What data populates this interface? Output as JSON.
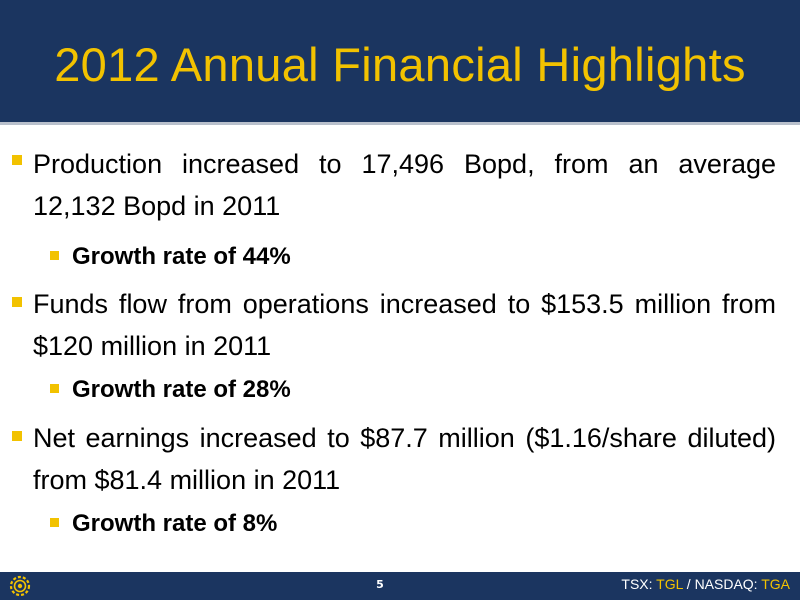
{
  "slide": {
    "title": "2012 Annual Financial Highlights",
    "bullets": [
      {
        "text": "Production increased to 17,496 Bopd, from an average 12,132 Bopd in 2011",
        "sub": "Growth rate of 44%"
      },
      {
        "text": "Funds flow from operations increased to $153.5 million from $120 million in 2011",
        "sub": "Growth rate of 28%"
      },
      {
        "text": "Net earnings increased to $87.7 million ($1.16/share diluted) from $81.4 million in 2011",
        "sub": "Growth rate of 8%"
      }
    ]
  },
  "footer": {
    "page_number": "5",
    "ticker": {
      "label1": "TSX: ",
      "symbol1": "TGL",
      "separator": " / ",
      "label2": "NASDAQ: ",
      "symbol2": "TGA"
    },
    "logo_icon": "gear-logo-icon"
  },
  "colors": {
    "header_bg": "#1b3560",
    "title": "#f2c200",
    "bullet_marker": "#f2c200",
    "text": "#000000"
  }
}
